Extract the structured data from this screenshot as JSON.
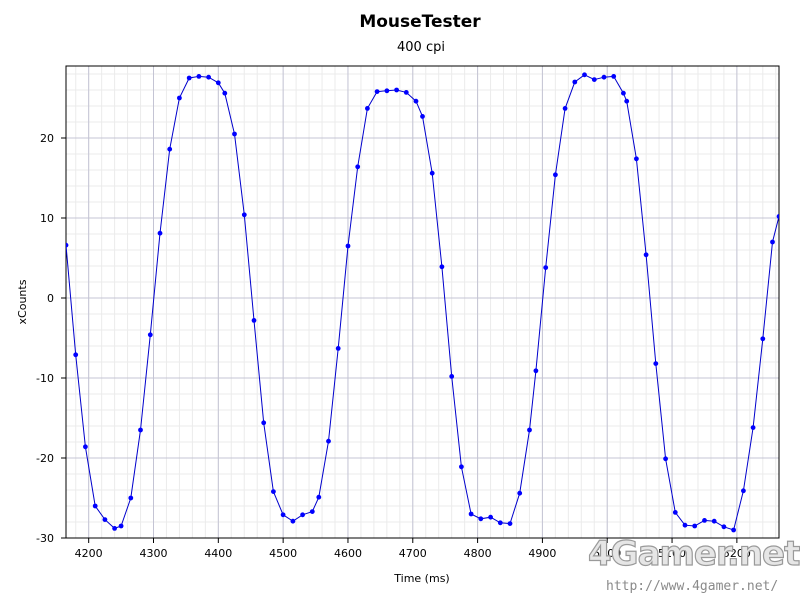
{
  "chart_data": {
    "type": "scatter",
    "title": "MouseTester",
    "subtitle": "400 cpi",
    "xlabel": "Time (ms)",
    "ylabel": "xCounts",
    "xlim": [
      4165,
      5265
    ],
    "ylim": [
      -30,
      29
    ],
    "x_ticks": [
      4200,
      4300,
      4400,
      4500,
      4600,
      4700,
      4800,
      4900,
      5000,
      5100,
      5200
    ],
    "y_ticks": [
      -30,
      -20,
      -10,
      0,
      10,
      20
    ],
    "grid": true,
    "point_color": "#0000ff",
    "line_color": "#0000cc",
    "series": [
      {
        "x": [
          4165,
          4180,
          4195,
          4210,
          4225,
          4240,
          4250,
          4265,
          4280,
          4295,
          4310,
          4325,
          4340,
          4355,
          4370,
          4385,
          4400,
          4410,
          4425,
          4440,
          4455,
          4470,
          4485,
          4500,
          4515,
          4530,
          4545,
          4555,
          4570,
          4585,
          4600,
          4615,
          4630,
          4645,
          4660,
          4675,
          4690,
          4705,
          4715,
          4730,
          4745,
          4760,
          4775,
          4790,
          4805,
          4820,
          4835,
          4850,
          4865,
          4880,
          4890,
          4905,
          4920,
          4935,
          4950,
          4965,
          4980,
          4995,
          5010,
          5025,
          5030,
          5045,
          5060,
          5075,
          5090,
          5105,
          5120,
          5135,
          5150,
          5165,
          5180,
          5195,
          5210,
          5225,
          5240,
          5255,
          5265
        ],
        "y": [
          6.6,
          -7.1,
          -18.6,
          -26.0,
          -27.7,
          -28.8,
          -28.5,
          -25.0,
          -16.5,
          -4.6,
          8.1,
          18.6,
          25.0,
          27.5,
          27.7,
          27.6,
          26.9,
          25.6,
          20.5,
          10.4,
          -2.8,
          -15.6,
          -24.2,
          -27.1,
          -27.9,
          -27.1,
          -26.7,
          -24.9,
          -17.9,
          -6.3,
          6.5,
          16.4,
          23.7,
          25.8,
          25.9,
          26.0,
          25.7,
          24.6,
          22.7,
          15.6,
          3.9,
          -9.8,
          -21.1,
          -27.0,
          -27.6,
          -27.4,
          -28.1,
          -28.2,
          -24.4,
          -16.5,
          -9.1,
          3.8,
          15.4,
          23.7,
          27.0,
          27.9,
          27.3,
          27.6,
          27.7,
          25.6,
          24.6,
          17.4,
          5.4,
          -8.2,
          -20.1,
          -26.8,
          -28.4,
          -28.5,
          -27.8,
          -27.9,
          -28.6,
          -29.0,
          -24.1,
          -16.2,
          -5.1,
          7.0,
          10.2
        ]
      }
    ]
  },
  "watermark": {
    "brand": "4Gamer.net",
    "url": "http://www.4gamer.net/"
  }
}
